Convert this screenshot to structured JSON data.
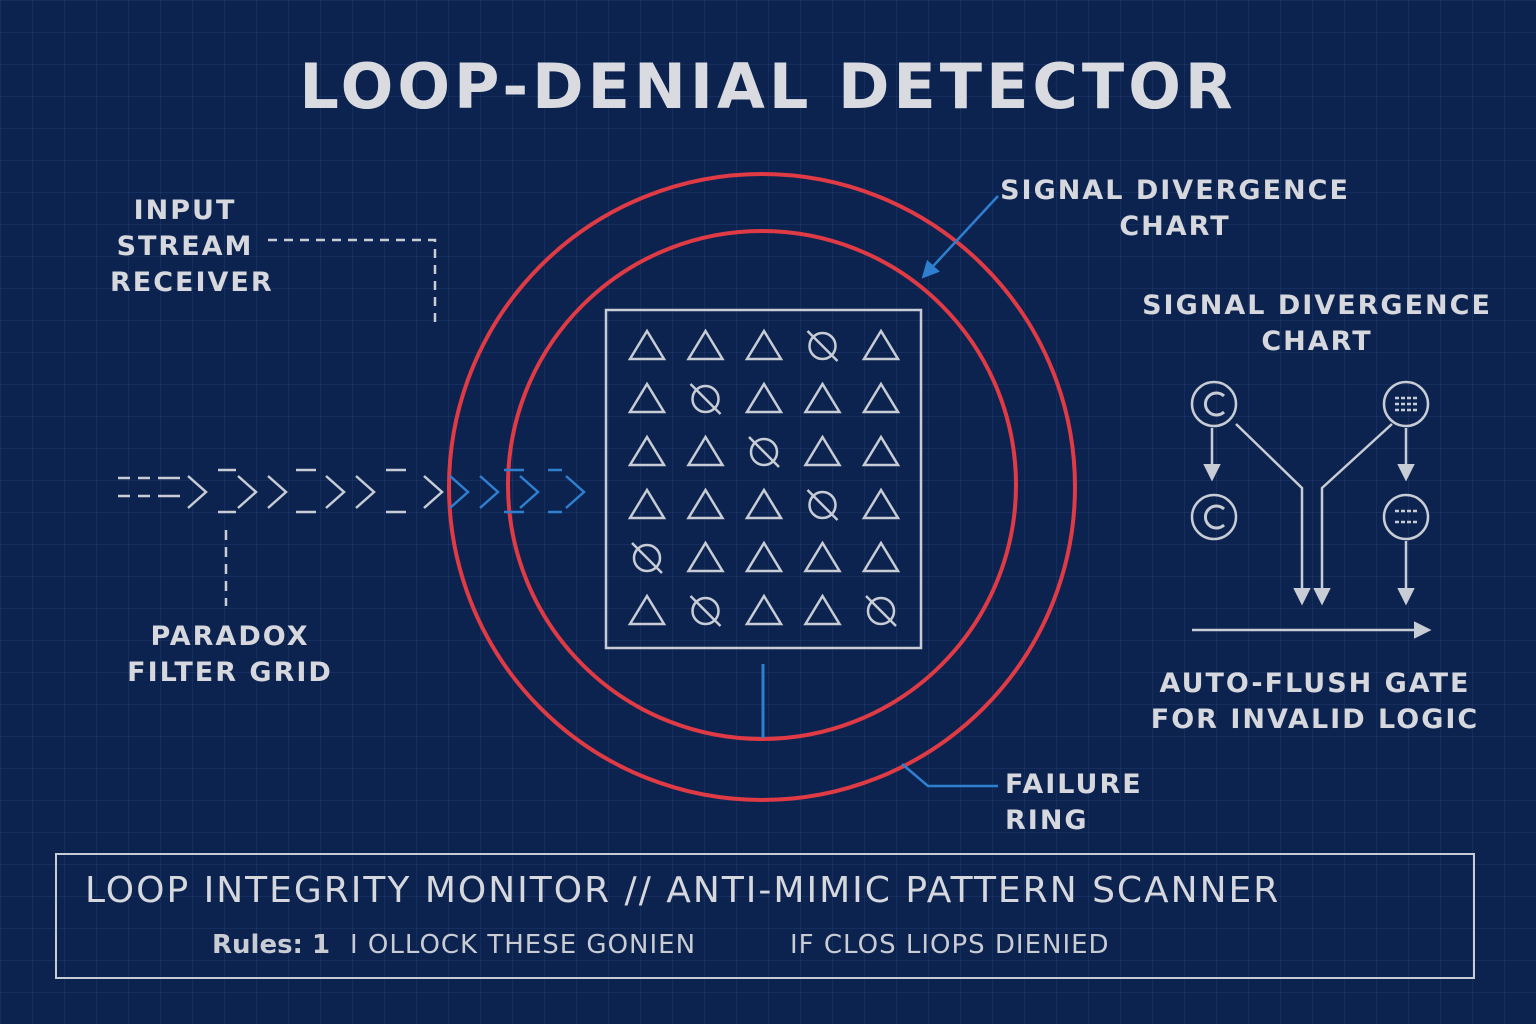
{
  "title": "LOOP-DENIAL DETECTOR",
  "labels": {
    "input_stream": [
      "INPUT",
      "STREAM",
      "RECEIVER"
    ],
    "paradox_filter": [
      "PARADOX",
      "FILTER GRID"
    ],
    "signal_divergence_top": [
      "SIGNAL DIVERGENCE",
      "CHART"
    ],
    "signal_divergence_side": [
      "SIGNAL DIVERGENCE",
      "CHART"
    ],
    "auto_flush": [
      "AUTO-FLUSH GATE",
      "FOR INVALID LOGIC"
    ],
    "failure_ring": "FAILURE RING"
  },
  "monitor": {
    "title": "LOOP INTEGRITY MONITOR // ANTI-MIMIC PATTERN SCANNER",
    "rules_prefix": "Rules: 1",
    "rules_text": "I OLLOCK THESE GONIEN",
    "rules_text_2": "IF CLOS LIOPS DIENIED"
  },
  "grid": {
    "rows": 6,
    "cols": 5,
    "cells": [
      [
        "triangle",
        "triangle",
        "triangle",
        "crossed-circle",
        "triangle"
      ],
      [
        "triangle",
        "crossed-circle",
        "triangle",
        "triangle",
        "triangle"
      ],
      [
        "triangle",
        "triangle",
        "crossed-circle",
        "triangle",
        "triangle"
      ],
      [
        "triangle",
        "triangle",
        "triangle",
        "crossed-circle",
        "triangle"
      ],
      [
        "crossed-circle",
        "triangle",
        "triangle",
        "triangle",
        "triangle"
      ],
      [
        "triangle",
        "crossed-circle",
        "triangle",
        "triangle",
        "crossed-circle"
      ]
    ]
  },
  "colors": {
    "background": "#0c2350",
    "line": "#c8ccd4",
    "ring": "#e03a45",
    "accent": "#2f7fd0"
  }
}
